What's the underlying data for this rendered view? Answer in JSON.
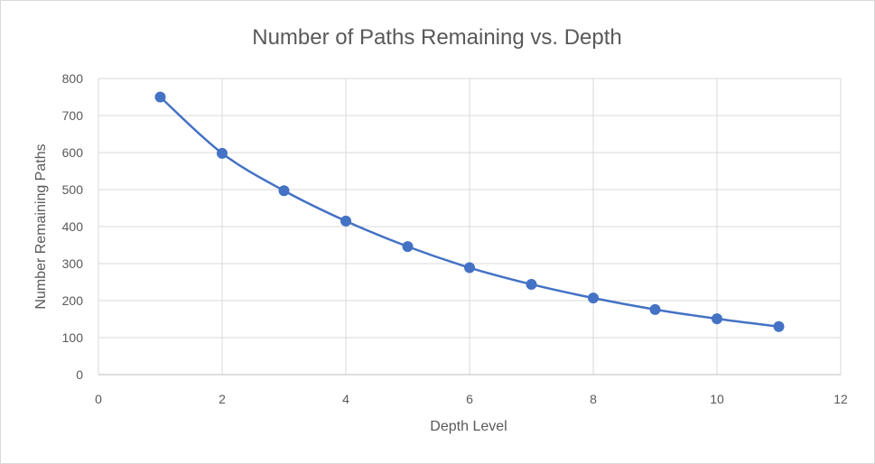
{
  "chart_data": {
    "type": "line",
    "title": "Number of Paths Remaining vs. Depth",
    "xlabel": "Depth Level",
    "ylabel": "Number Remaining Paths",
    "xlim": [
      0,
      12
    ],
    "ylim": [
      0,
      800
    ],
    "x_ticks": [
      0,
      2,
      4,
      6,
      8,
      10,
      12
    ],
    "y_ticks": [
      0,
      100,
      200,
      300,
      400,
      500,
      600,
      700,
      800
    ],
    "grid": true,
    "legend": "none",
    "smooth": true,
    "series": [
      {
        "color": "#4472c4",
        "x": [
          1,
          2,
          3,
          4,
          5,
          6,
          7,
          8,
          9,
          10,
          11
        ],
        "y": [
          750,
          598,
          497,
          415,
          346,
          289,
          244,
          207,
          176,
          151,
          130
        ]
      }
    ]
  }
}
